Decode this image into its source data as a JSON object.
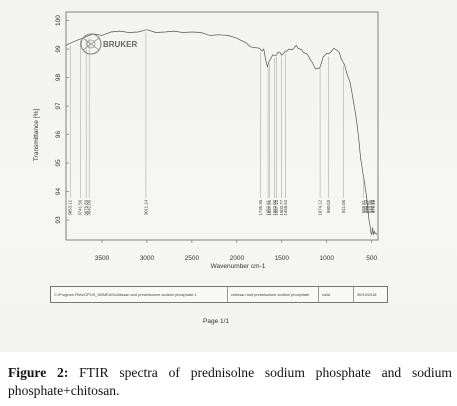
{
  "instrument": {
    "brand": "BRUKER"
  },
  "chart_data": {
    "type": "line",
    "title": "",
    "xlabel": "Wavenumber cm-1",
    "ylabel": "Transmittance [%]",
    "xlim": [
      3900,
      430
    ],
    "ylim": [
      92.3,
      100.3
    ],
    "x_ticks": [
      "3500",
      "3000",
      "2500",
      "2000",
      "1500",
      "1000",
      "500"
    ],
    "y_ticks": [
      "93",
      "94",
      "95",
      "96",
      "97",
      "98",
      "99",
      "100"
    ],
    "series": [
      {
        "x": [
          3900,
          3800,
          3700,
          3600,
          3500,
          3400,
          3300,
          3200,
          3100,
          3000,
          2900,
          2800,
          2700,
          2600,
          2500,
          2400,
          2300,
          2200,
          2100,
          2000,
          1950,
          1900,
          1850,
          1800,
          1750,
          1720,
          1700,
          1680,
          1660,
          1650,
          1640,
          1620,
          1600,
          1580,
          1560,
          1540,
          1520,
          1500,
          1480,
          1460,
          1440,
          1420,
          1400,
          1380,
          1360,
          1340,
          1320,
          1300,
          1280,
          1260,
          1240,
          1220,
          1200,
          1180,
          1160,
          1140,
          1120,
          1100,
          1080,
          1060,
          1040,
          1020,
          1000,
          980,
          960,
          940,
          920,
          900,
          880,
          860,
          840,
          820,
          800,
          780,
          760,
          740,
          720,
          700,
          680,
          660,
          650,
          640,
          630,
          620,
          610,
          600,
          590,
          580,
          570,
          560,
          550,
          540,
          530,
          520,
          510,
          500,
          490,
          480,
          470,
          460,
          450,
          440
        ],
        "y": [
          99.1,
          99.3,
          99.4,
          99.5,
          99.5,
          99.6,
          99.6,
          99.6,
          99.6,
          99.65,
          99.6,
          99.6,
          99.6,
          99.6,
          99.6,
          99.55,
          99.5,
          99.5,
          99.45,
          99.4,
          99.3,
          99.2,
          99.1,
          99.05,
          99.0,
          98.95,
          99.0,
          98.6,
          98.4,
          98.5,
          98.55,
          98.7,
          98.8,
          98.75,
          98.8,
          98.9,
          98.85,
          98.8,
          98.85,
          98.9,
          98.95,
          99.0,
          98.95,
          99.0,
          99.05,
          99.1,
          99.05,
          99.0,
          98.95,
          98.9,
          98.85,
          98.8,
          98.75,
          98.6,
          98.5,
          98.4,
          98.3,
          98.3,
          98.35,
          98.5,
          98.7,
          98.8,
          98.85,
          98.8,
          98.9,
          98.95,
          99.0,
          99.0,
          98.95,
          98.85,
          98.7,
          98.55,
          98.4,
          98.2,
          98.0,
          97.8,
          97.5,
          97.1,
          96.7,
          96.3,
          96.0,
          95.7,
          95.4,
          95.1,
          94.9,
          94.7,
          94.5,
          94.3,
          94.1,
          93.9,
          93.6,
          93.3,
          93.0,
          92.8,
          92.6,
          92.5,
          92.7,
          92.5,
          92.6,
          92.5,
          92.55,
          92.5
        ]
      }
    ],
    "peak_labels": [
      "3853.12",
      "3741.56",
      "3675.83",
      "3642.06",
      "3011.14",
      "1735.36",
      "1652.61",
      "1637.51",
      "1583.00",
      "1557.10",
      "1503.77",
      "1458.94",
      "1074.12",
      "980.03",
      "811.00",
      "588.61",
      "560.99",
      "548.47",
      "510.99",
      "492.32",
      "479.13"
    ]
  },
  "footer": {
    "file_path": "C:\\Program Files\\OPUS_65\\MEAS\\chitosan and prednisolone sodium phosphate.1",
    "sample_name": "chitosan and prednisolone sodium phosphate",
    "sample_form": "solid",
    "date": "30/10/2016"
  },
  "page_label": "Page 1/1",
  "caption": {
    "prefix": "Figure 2:",
    "text": " FTIR spectra of prednisolne sodium phosphate and sodium phosphate+chitosan."
  }
}
